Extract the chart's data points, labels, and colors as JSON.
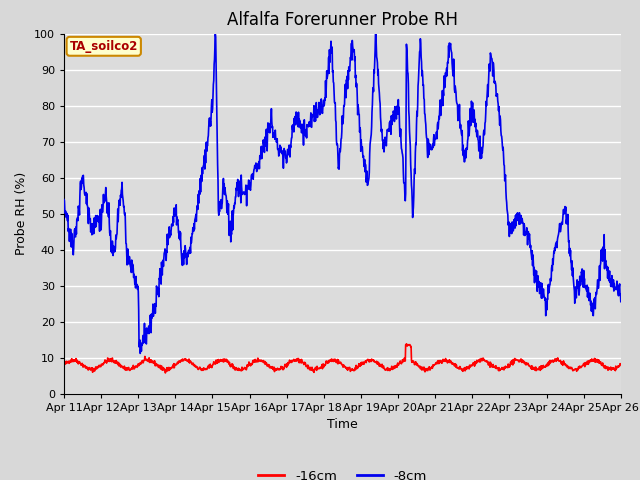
{
  "title": "Alfalfa Forerunner Probe RH",
  "xlabel": "Time",
  "ylabel": "Probe RH (%)",
  "ylim": [
    0,
    100
  ],
  "fig_facecolor": "#d8d8d8",
  "plot_bg_color": "#dcdcdc",
  "legend_label_red": "-16cm",
  "legend_label_blue": "-8cm",
  "annotation_text": "TA_soilco2",
  "annotation_bg": "#ffffcc",
  "annotation_border": "#cc8800",
  "annotation_text_color": "#aa0000",
  "red_color": "#ff0000",
  "blue_color": "#0000ee",
  "line_width": 1.2,
  "xtick_labels": [
    "Apr 11",
    "Apr 12",
    "Apr 13",
    "Apr 14",
    "Apr 15",
    "Apr 16",
    "Apr 17",
    "Apr 18",
    "Apr 19",
    "Apr 20",
    "Apr 21",
    "Apr 22",
    "Apr 23",
    "Apr 24",
    "Apr 25",
    "Apr 26"
  ],
  "grid_color": "#ffffff",
  "title_fontsize": 12,
  "axis_fontsize": 9,
  "tick_fontsize": 8
}
